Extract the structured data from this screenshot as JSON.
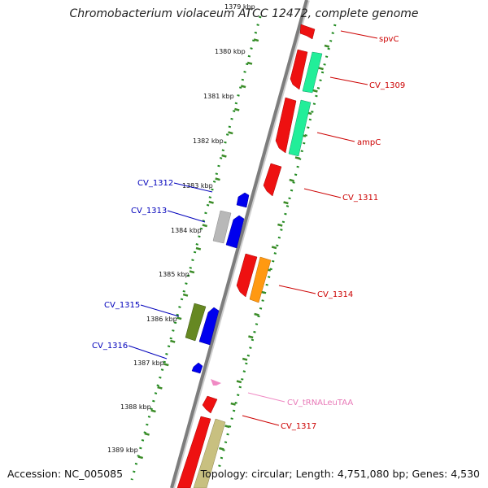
{
  "title": "Chromobacterium violaceum ATCC 12472, complete genome",
  "footer": {
    "accession": "Accession: NC_005085",
    "summary": "Topology: circular; Length: 4,751,080 bp; Genes: 4,530"
  },
  "colors": {
    "backbone": "#808080",
    "tick_major": "#3c8c28",
    "tick_dot": "#228b22",
    "forward_label": "#cc0000",
    "reverse_label": "#0000bb",
    "trna_label": "#e87ab8"
  },
  "tick_labels": [
    {
      "label": "1379 kbp",
      "faded": true
    },
    {
      "label": "1380 kbp",
      "faded": false
    },
    {
      "label": "1381 kbp",
      "faded": false
    },
    {
      "label": "1382 kbp",
      "faded": false
    },
    {
      "label": "1383 kbp",
      "faded": false
    },
    {
      "label": "1384 kbp",
      "faded": false
    },
    {
      "label": "1385 kbp",
      "faded": false
    },
    {
      "label": "1386 kbp",
      "faded": false
    },
    {
      "label": "1387 kbp",
      "faded": false
    },
    {
      "label": "1388 kbp",
      "faded": false
    },
    {
      "label": "1389 kbp",
      "faded": false
    }
  ],
  "forward_labels": [
    "spvC",
    "CV_1309",
    "ampC",
    "CV_1311",
    "CV_1314",
    "CV_tRNALeuTAA",
    "CV_1317"
  ],
  "reverse_labels": [
    "CV_1312",
    "CV_1313",
    "CV_1315",
    "CV_1316"
  ]
}
